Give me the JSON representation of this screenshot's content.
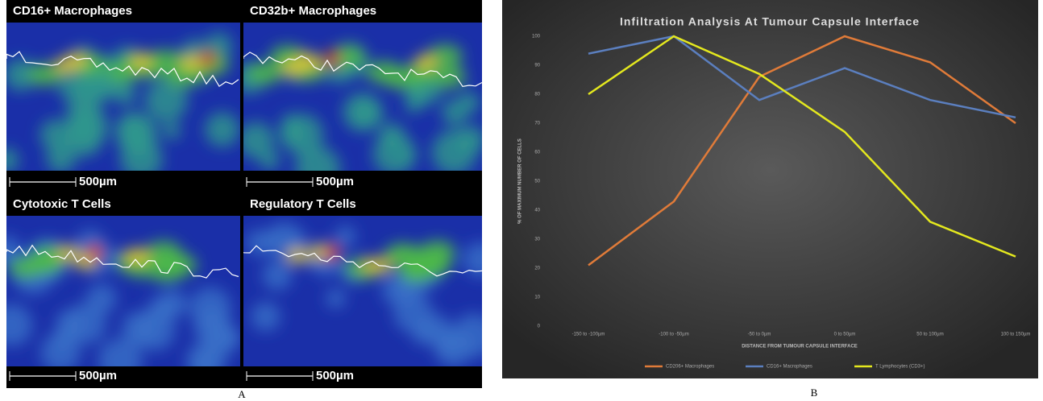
{
  "panel_a": {
    "images": [
      {
        "title": "CD16+ Macrophages",
        "scale": "500µm"
      },
      {
        "title": "CD32b+ Macrophages",
        "scale": "500µm"
      },
      {
        "title": "Cytotoxic T Cells",
        "scale": "500µm"
      },
      {
        "title": "Regulatory T Cells",
        "scale": "500µm"
      }
    ]
  },
  "panel_labels": [
    "A",
    "B"
  ],
  "chart_data": {
    "type": "line",
    "title": "Infiltration Analysis At Tumour Capsule Interface",
    "x_label": "DISTANCE FROM TUMOUR CAPSULE INTERFACE",
    "y_label": "% OF MAXIMUM NUMBER OF CELLS",
    "categories": [
      "-150 to -100µm",
      "-100 to -50µm",
      "-50 to 0µm",
      "0 to 50µm",
      "50 to 100µm",
      "100 to 150µm"
    ],
    "series": [
      {
        "name": "CD206+ Macrophages",
        "color": "#e07b39",
        "values": [
          21,
          43,
          86,
          100,
          91,
          70
        ]
      },
      {
        "name": "CD16+ Macrophages",
        "color": "#5b7fbf",
        "values": [
          94,
          100,
          78,
          89,
          78,
          72
        ]
      },
      {
        "name": "T Lymphocytes (CD3+)",
        "color": "#e4e81e",
        "values": [
          80,
          100,
          87,
          67,
          36,
          24
        ]
      }
    ],
    "ylim": [
      0,
      100
    ],
    "yticks": [
      0,
      10,
      20,
      30,
      40,
      50,
      60,
      70,
      80,
      90,
      100
    ],
    "grid": false,
    "legend": "bottom"
  }
}
